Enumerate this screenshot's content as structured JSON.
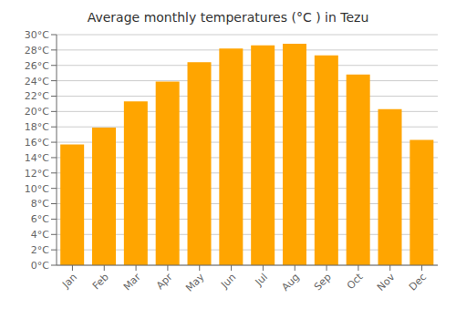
{
  "chart_data": {
    "type": "bar",
    "title": "Average monthly temperatures (°C ) in Tezu",
    "categories": [
      "Jan",
      "Feb",
      "Mar",
      "Apr",
      "May",
      "Jun",
      "Jul",
      "Aug",
      "Sep",
      "Oct",
      "Nov",
      "Dec"
    ],
    "values": [
      15.7,
      17.9,
      21.3,
      23.9,
      26.4,
      28.2,
      28.6,
      28.8,
      27.3,
      24.8,
      20.3,
      16.3
    ],
    "color": "#FFA500",
    "ylim": [
      0,
      30
    ],
    "yticks": [
      {
        "value": 0,
        "label": "0°C"
      },
      {
        "value": 2,
        "label": "2°C"
      },
      {
        "value": 4,
        "label": "4°C"
      },
      {
        "value": 6,
        "label": "6°C"
      },
      {
        "value": 8,
        "label": "8°C"
      },
      {
        "value": 10,
        "label": "10°C"
      },
      {
        "value": 12,
        "label": "12°C"
      },
      {
        "value": 14,
        "label": "14°C"
      },
      {
        "value": 16,
        "label": "16°C"
      },
      {
        "value": 18,
        "label": "18°C"
      },
      {
        "value": 20,
        "label": "20°C"
      },
      {
        "value": 22,
        "label": "22°C"
      },
      {
        "value": 24,
        "label": "24°C"
      },
      {
        "value": 26,
        "label": "26°C"
      },
      {
        "value": 28,
        "label": "28°C"
      },
      {
        "value": 30,
        "label": "30°C"
      }
    ],
    "grid": true
  }
}
